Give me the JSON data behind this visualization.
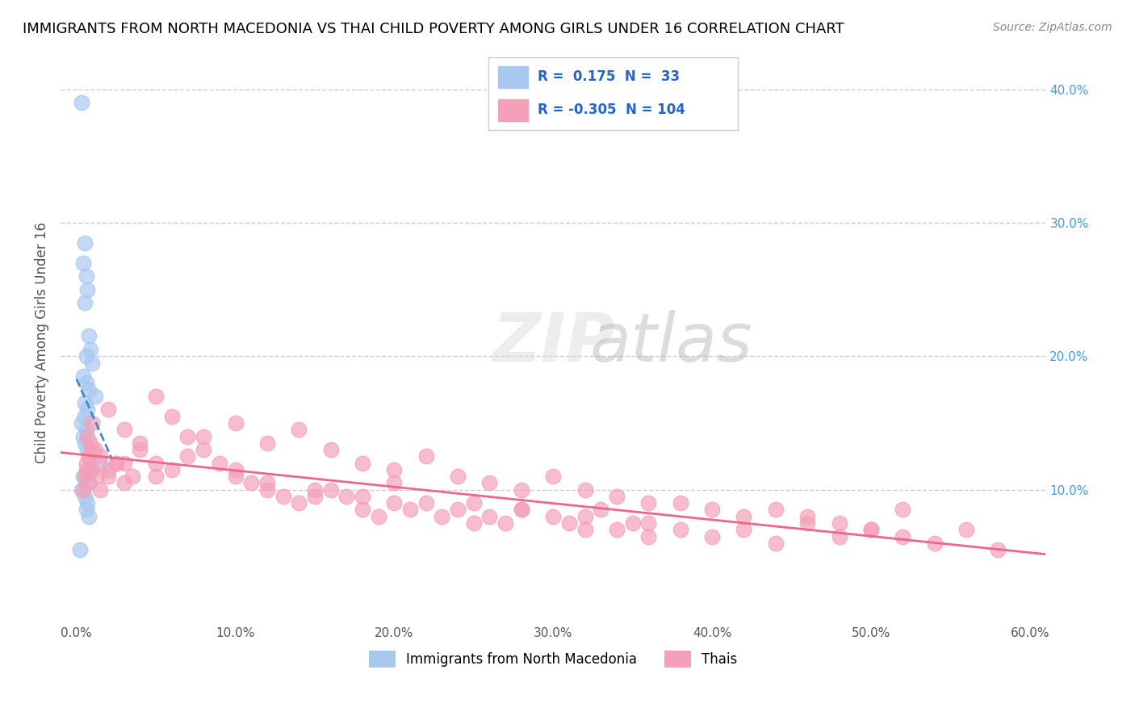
{
  "title": "IMMIGRANTS FROM NORTH MACEDONIA VS THAI CHILD POVERTY AMONG GIRLS UNDER 16 CORRELATION CHART",
  "source": "Source: ZipAtlas.com",
  "xlabel": "",
  "ylabel": "Child Poverty Among Girls Under 16",
  "xlim": [
    0.0,
    60.0
  ],
  "ylim": [
    0.0,
    42.0
  ],
  "x_ticks": [
    0.0,
    10.0,
    20.0,
    30.0,
    40.0,
    50.0,
    60.0
  ],
  "y_ticks_right": [
    10.0,
    20.0,
    30.0,
    40.0
  ],
  "legend_blue_r": "0.175",
  "legend_blue_n": "33",
  "legend_pink_r": "-0.305",
  "legend_pink_n": "104",
  "blue_color": "#a8c8f0",
  "pink_color": "#f4a0b8",
  "blue_line_color": "#4488cc",
  "pink_line_color": "#ee6688",
  "watermark": "ZIPatlas",
  "blue_scatter_x": [
    0.3,
    0.5,
    0.4,
    0.6,
    0.7,
    0.5,
    0.8,
    0.9,
    0.6,
    1.0,
    0.4,
    0.6,
    0.8,
    1.2,
    0.5,
    0.7,
    0.5,
    0.3,
    0.6,
    0.4,
    0.5,
    0.7,
    0.8,
    1.5,
    0.9,
    0.4,
    0.6,
    0.3,
    0.5,
    0.7,
    0.6,
    0.8,
    0.2
  ],
  "blue_scatter_y": [
    39.0,
    28.5,
    27.0,
    26.0,
    25.0,
    24.0,
    21.5,
    20.5,
    20.0,
    19.5,
    18.5,
    18.0,
    17.5,
    17.0,
    16.5,
    16.0,
    15.5,
    15.0,
    14.5,
    14.0,
    13.5,
    13.0,
    12.5,
    12.0,
    11.5,
    11.0,
    10.5,
    10.0,
    9.5,
    9.0,
    8.5,
    8.0,
    5.5
  ],
  "pink_scatter_x": [
    0.5,
    0.8,
    0.6,
    1.0,
    1.2,
    1.5,
    0.7,
    0.9,
    1.3,
    0.4,
    0.6,
    0.8,
    1.0,
    2.0,
    2.5,
    3.0,
    2.0,
    1.5,
    2.5,
    3.5,
    4.0,
    5.0,
    6.0,
    7.0,
    8.0,
    9.0,
    10.0,
    11.0,
    12.0,
    13.0,
    14.0,
    15.0,
    16.0,
    17.0,
    18.0,
    19.0,
    20.0,
    21.0,
    22.0,
    23.0,
    24.0,
    25.0,
    26.0,
    27.0,
    28.0,
    30.0,
    31.0,
    32.0,
    33.0,
    34.0,
    35.0,
    36.0,
    38.0,
    40.0,
    42.0,
    44.0,
    46.0,
    48.0,
    50.0,
    52.0,
    1.0,
    2.0,
    3.0,
    4.0,
    5.0,
    6.0,
    8.0,
    10.0,
    12.0,
    14.0,
    16.0,
    18.0,
    20.0,
    22.0,
    24.0,
    26.0,
    28.0,
    30.0,
    32.0,
    34.0,
    36.0,
    38.0,
    40.0,
    42.0,
    44.0,
    46.0,
    48.0,
    50.0,
    52.0,
    54.0,
    56.0,
    58.0,
    3.0,
    5.0,
    7.0,
    10.0,
    12.0,
    15.0,
    18.0,
    20.0,
    25.0,
    28.0,
    32.0,
    36.0
  ],
  "pink_scatter_y": [
    11.0,
    10.5,
    12.0,
    11.5,
    13.0,
    12.5,
    14.0,
    13.5,
    11.0,
    10.0,
    11.5,
    12.5,
    13.0,
    11.0,
    12.0,
    10.5,
    11.5,
    10.0,
    12.0,
    11.0,
    13.5,
    12.0,
    11.5,
    14.0,
    13.0,
    12.0,
    11.0,
    10.5,
    10.0,
    9.5,
    9.0,
    9.5,
    10.0,
    9.5,
    8.5,
    8.0,
    9.0,
    8.5,
    9.0,
    8.0,
    8.5,
    7.5,
    8.0,
    7.5,
    8.5,
    8.0,
    7.5,
    7.0,
    8.5,
    7.0,
    7.5,
    6.5,
    7.0,
    6.5,
    7.0,
    6.0,
    7.5,
    6.5,
    7.0,
    8.5,
    15.0,
    16.0,
    14.5,
    13.0,
    17.0,
    15.5,
    14.0,
    15.0,
    13.5,
    14.5,
    13.0,
    12.0,
    11.5,
    12.5,
    11.0,
    10.5,
    10.0,
    11.0,
    10.0,
    9.5,
    9.0,
    9.0,
    8.5,
    8.0,
    8.5,
    8.0,
    7.5,
    7.0,
    6.5,
    6.0,
    7.0,
    5.5,
    12.0,
    11.0,
    12.5,
    11.5,
    10.5,
    10.0,
    9.5,
    10.5,
    9.0,
    8.5,
    8.0,
    7.5
  ]
}
